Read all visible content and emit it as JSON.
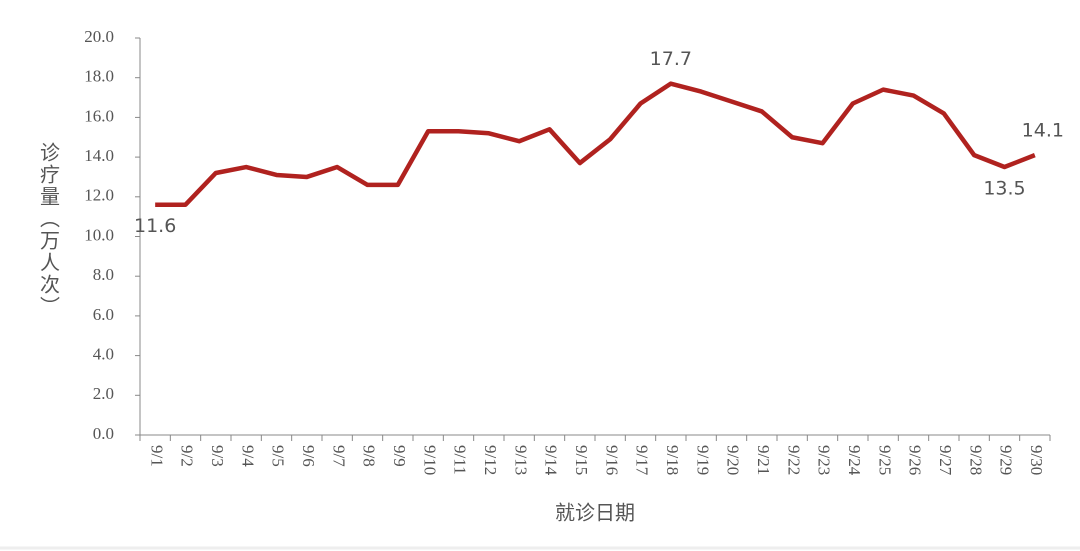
{
  "chart_data": {
    "type": "line",
    "y_label": "诊疗量（万人次）",
    "x_label": "就诊日期",
    "categories": [
      "9/1",
      "9/2",
      "9/3",
      "9/4",
      "9/5",
      "9/6",
      "9/7",
      "9/8",
      "9/9",
      "9/10",
      "9/11",
      "9/12",
      "9/13",
      "9/14",
      "9/15",
      "9/16",
      "9/17",
      "9/18",
      "9/19",
      "9/20",
      "9/21",
      "9/22",
      "9/23",
      "9/24",
      "9/25",
      "9/26",
      "9/27",
      "9/28",
      "9/29",
      "9/30"
    ],
    "values": [
      11.6,
      11.6,
      13.2,
      13.5,
      13.1,
      13.0,
      13.5,
      12.6,
      12.6,
      15.3,
      15.3,
      15.2,
      14.8,
      15.4,
      13.7,
      14.9,
      16.7,
      17.7,
      17.3,
      16.8,
      16.3,
      15.0,
      14.7,
      16.7,
      17.4,
      17.1,
      16.2,
      14.1,
      13.5,
      14.1
    ],
    "value_labels": [
      "11.6",
      null,
      null,
      null,
      null,
      null,
      null,
      null,
      null,
      null,
      null,
      null,
      null,
      null,
      null,
      null,
      null,
      "17.7",
      null,
      null,
      null,
      null,
      null,
      null,
      null,
      null,
      null,
      null,
      "13.5",
      "14.1"
    ],
    "color": "#b0221f",
    "ylim": [
      0,
      20
    ],
    "yticks": [
      {
        "value": 0,
        "label": "0.0"
      },
      {
        "value": 2,
        "label": "2.0"
      },
      {
        "value": 4,
        "label": "4.0"
      },
      {
        "value": 6,
        "label": "6.0"
      },
      {
        "value": 8,
        "label": "8.0"
      },
      {
        "value": 10,
        "label": "10.0"
      },
      {
        "value": 12,
        "label": "12.0"
      },
      {
        "value": 14,
        "label": "14.0"
      },
      {
        "value": 16,
        "label": "16.0"
      },
      {
        "value": 18,
        "label": "18.0"
      },
      {
        "value": 20,
        "label": "20.0"
      }
    ],
    "grid": false
  }
}
